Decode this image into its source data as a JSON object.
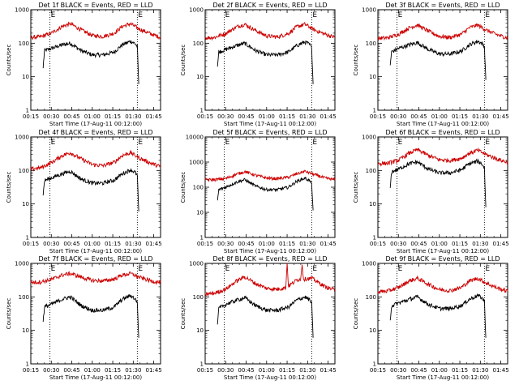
{
  "chart_data": [
    {
      "type": "line",
      "title": "Det 1f BLACK = Events, RED = LLD",
      "xlabel": "Start Time (17-Aug-11 00:12:00)",
      "ylabel": "Counts/sec",
      "ylog": true,
      "ylim": [
        1,
        1000
      ],
      "xlim": [
        "00:15",
        "01:50"
      ],
      "x_ticks": [
        "00:15",
        "00:30",
        "00:45",
        "01:00",
        "01:15",
        "01:30",
        "01:45"
      ],
      "y_ticks": [
        "1",
        "10",
        "100",
        "1000"
      ],
      "event_lines": [
        "00:29",
        "01:33"
      ],
      "event_marks": [
        "E",
        "E"
      ],
      "series": [
        {
          "name": "Events",
          "color": "#000000",
          "x": [
            "00:24",
            "00:25",
            "00:30",
            "00:38",
            "00:44",
            "00:52",
            "01:00",
            "01:08",
            "01:16",
            "01:22",
            "01:28",
            "01:31",
            "01:33",
            "01:34"
          ],
          "values": [
            18,
            60,
            70,
            90,
            100,
            60,
            45,
            45,
            55,
            90,
            115,
            100,
            80,
            6
          ]
        },
        {
          "name": "LLD",
          "color": "#cc0000",
          "x": [
            "00:15",
            "00:22",
            "00:30",
            "00:38",
            "00:44",
            "00:52",
            "01:00",
            "01:08",
            "01:16",
            "01:22",
            "01:28",
            "01:35",
            "01:43",
            "01:50"
          ],
          "values": [
            150,
            155,
            200,
            320,
            380,
            250,
            170,
            160,
            200,
            320,
            380,
            260,
            190,
            150
          ]
        }
      ]
    },
    {
      "type": "line",
      "title": "Det 2f BLACK = Events, RED = LLD",
      "xlabel": "Start Time (17-Aug-11 00:12:00)",
      "ylabel": "Counts/sec",
      "ylog": true,
      "ylim": [
        1,
        1000
      ],
      "xlim": [
        "00:15",
        "01:50"
      ],
      "x_ticks": [
        "00:15",
        "00:30",
        "00:45",
        "01:00",
        "01:15",
        "01:30",
        "01:45"
      ],
      "y_ticks": [
        "1",
        "10",
        "100",
        "1000"
      ],
      "event_lines": [
        "00:29",
        "01:33"
      ],
      "event_marks": [
        "E",
        "E"
      ],
      "series": [
        {
          "name": "Events",
          "color": "#000000",
          "x": [
            "00:24",
            "00:25",
            "00:30",
            "00:38",
            "00:44",
            "00:52",
            "01:00",
            "01:08",
            "01:16",
            "01:22",
            "01:28",
            "01:31",
            "01:33",
            "01:34"
          ],
          "values": [
            20,
            55,
            65,
            85,
            100,
            60,
            45,
            45,
            55,
            85,
            110,
            95,
            75,
            6
          ]
        },
        {
          "name": "LLD",
          "color": "#cc0000",
          "x": [
            "00:15",
            "00:22",
            "00:30",
            "00:38",
            "00:44",
            "00:52",
            "01:00",
            "01:08",
            "01:16",
            "01:22",
            "01:28",
            "01:35",
            "01:43",
            "01:50"
          ],
          "values": [
            145,
            150,
            195,
            310,
            370,
            240,
            165,
            155,
            195,
            310,
            370,
            250,
            185,
            150
          ]
        }
      ]
    },
    {
      "type": "line",
      "title": "Det 3f BLACK = Events, RED = LLD",
      "xlabel": "Start Time (17-Aug-11 00:12:00)",
      "ylabel": "Counts/sec",
      "ylog": true,
      "ylim": [
        1,
        1000
      ],
      "xlim": [
        "00:15",
        "01:50"
      ],
      "x_ticks": [
        "00:15",
        "00:30",
        "00:45",
        "01:00",
        "01:15",
        "01:30",
        "01:45"
      ],
      "y_ticks": [
        "1",
        "10",
        "100",
        "1000"
      ],
      "event_lines": [
        "00:29",
        "01:33"
      ],
      "event_marks": [
        "E",
        "E"
      ],
      "series": [
        {
          "name": "Events",
          "color": "#000000",
          "x": [
            "00:24",
            "00:25",
            "00:30",
            "00:38",
            "00:44",
            "00:52",
            "01:00",
            "01:08",
            "01:16",
            "01:22",
            "01:28",
            "01:31",
            "01:33",
            "01:34"
          ],
          "values": [
            22,
            55,
            70,
            90,
            105,
            65,
            48,
            48,
            58,
            90,
            115,
            100,
            80,
            8
          ]
        },
        {
          "name": "LLD",
          "color": "#cc0000",
          "x": [
            "00:15",
            "00:22",
            "00:30",
            "00:38",
            "00:44",
            "00:52",
            "01:00",
            "01:08",
            "01:16",
            "01:22",
            "01:28",
            "01:35",
            "01:43",
            "01:50"
          ],
          "values": [
            140,
            145,
            185,
            290,
            350,
            230,
            160,
            150,
            185,
            290,
            350,
            240,
            175,
            145
          ]
        }
      ]
    },
    {
      "type": "line",
      "title": "Det 4f BLACK = Events, RED = LLD",
      "xlabel": "Start Time (17-Aug-11 00:12:00)",
      "ylabel": "Counts/sec",
      "ylog": true,
      "ylim": [
        1,
        1000
      ],
      "xlim": [
        "00:15",
        "01:50"
      ],
      "x_ticks": [
        "00:15",
        "00:30",
        "00:45",
        "01:00",
        "01:15",
        "01:30",
        "01:45"
      ],
      "y_ticks": [
        "1",
        "10",
        "100",
        "1000"
      ],
      "event_lines": [
        "00:29",
        "01:33"
      ],
      "event_marks": [
        "E",
        "E"
      ],
      "series": [
        {
          "name": "Events",
          "color": "#000000",
          "x": [
            "00:24",
            "00:25",
            "00:30",
            "00:38",
            "00:44",
            "00:52",
            "01:00",
            "01:08",
            "01:16",
            "01:22",
            "01:28",
            "01:31",
            "01:33",
            "01:34"
          ],
          "values": [
            18,
            50,
            60,
            80,
            95,
            55,
            42,
            42,
            52,
            80,
            105,
            90,
            70,
            6
          ]
        },
        {
          "name": "LLD",
          "color": "#cc0000",
          "x": [
            "00:15",
            "00:22",
            "00:30",
            "00:38",
            "00:44",
            "00:52",
            "01:00",
            "01:08",
            "01:16",
            "01:22",
            "01:28",
            "01:35",
            "01:43",
            "01:50"
          ],
          "values": [
            110,
            120,
            170,
            280,
            340,
            220,
            150,
            140,
            175,
            280,
            340,
            230,
            165,
            130
          ]
        }
      ]
    },
    {
      "type": "line",
      "title": "Det 5f BLACK = Events, RED = LLD",
      "xlabel": "Start Time (17-Aug-11 00:12:00)",
      "ylabel": "Counts/sec",
      "ylog": true,
      "ylim": [
        1,
        10000
      ],
      "xlim": [
        "00:15",
        "01:50"
      ],
      "x_ticks": [
        "00:15",
        "00:30",
        "00:45",
        "01:00",
        "01:15",
        "01:30",
        "01:45"
      ],
      "y_ticks": [
        "1",
        "10",
        "100",
        "1000",
        "10000"
      ],
      "event_lines": [
        "00:29",
        "01:33"
      ],
      "event_marks": [
        "E",
        "E"
      ],
      "series": [
        {
          "name": "Events",
          "color": "#000000",
          "x": [
            "00:24",
            "00:25",
            "00:30",
            "00:38",
            "00:44",
            "00:52",
            "01:00",
            "01:08",
            "01:16",
            "01:22",
            "01:28",
            "01:31",
            "01:33",
            "01:34"
          ],
          "values": [
            30,
            80,
            100,
            160,
            200,
            110,
            80,
            80,
            100,
            170,
            230,
            190,
            140,
            12
          ]
        },
        {
          "name": "LLD",
          "color": "#cc0000",
          "x": [
            "00:15",
            "00:22",
            "00:30",
            "00:38",
            "00:44",
            "00:52",
            "01:00",
            "01:08",
            "01:16",
            "01:22",
            "01:28",
            "01:35",
            "01:43",
            "01:50"
          ],
          "values": [
            200,
            200,
            220,
            330,
            420,
            300,
            230,
            220,
            250,
            340,
            430,
            320,
            230,
            200
          ]
        }
      ]
    },
    {
      "type": "line",
      "title": "Det 6f BLACK = Events, RED = LLD",
      "xlabel": "Start Time (17-Aug-11 00:12:00)",
      "ylabel": "Counts/sec",
      "ylog": true,
      "ylim": [
        1,
        1000
      ],
      "xlim": [
        "00:15",
        "01:50"
      ],
      "x_ticks": [
        "00:15",
        "00:30",
        "00:45",
        "01:00",
        "01:15",
        "01:30",
        "01:45"
      ],
      "y_ticks": [
        "1",
        "10",
        "100",
        "1000"
      ],
      "event_lines": [
        "00:29",
        "01:33"
      ],
      "event_marks": [
        "E",
        "E"
      ],
      "series": [
        {
          "name": "Events",
          "color": "#000000",
          "x": [
            "00:24",
            "00:25",
            "00:30",
            "00:38",
            "00:44",
            "00:52",
            "01:00",
            "01:08",
            "01:16",
            "01:22",
            "01:28",
            "01:31",
            "01:33",
            "01:34"
          ],
          "values": [
            30,
            90,
            110,
            160,
            180,
            110,
            85,
            85,
            105,
            160,
            190,
            160,
            120,
            8
          ]
        },
        {
          "name": "LLD",
          "color": "#cc0000",
          "x": [
            "00:15",
            "00:22",
            "00:30",
            "00:38",
            "00:44",
            "00:52",
            "01:00",
            "01:08",
            "01:16",
            "01:22",
            "01:28",
            "01:35",
            "01:43",
            "01:50"
          ],
          "values": [
            160,
            165,
            200,
            330,
            420,
            280,
            210,
            200,
            230,
            330,
            400,
            290,
            215,
            175
          ]
        }
      ]
    },
    {
      "type": "line",
      "title": "Det 7f BLACK = Events, RED = LLD",
      "xlabel": "Start Time (17-Aug-11 00:12:00)",
      "ylabel": "Counts/sec",
      "ylog": true,
      "ylim": [
        1,
        1000
      ],
      "xlim": [
        "00:15",
        "01:50"
      ],
      "x_ticks": [
        "00:15",
        "00:30",
        "00:45",
        "01:00",
        "01:15",
        "01:30",
        "01:45"
      ],
      "y_ticks": [
        "1",
        "10",
        "100",
        "1000"
      ],
      "event_lines": [
        "00:29",
        "01:33"
      ],
      "event_marks": [
        "E",
        "E"
      ],
      "series": [
        {
          "name": "Events",
          "color": "#000000",
          "x": [
            "00:24",
            "00:25",
            "00:30",
            "00:38",
            "00:44",
            "00:52",
            "01:00",
            "01:08",
            "01:16",
            "01:22",
            "01:28",
            "01:31",
            "01:33",
            "01:34"
          ],
          "values": [
            18,
            50,
            60,
            85,
            100,
            55,
            40,
            40,
            50,
            85,
            110,
            90,
            70,
            6
          ]
        },
        {
          "name": "LLD",
          "color": "#cc0000",
          "x": [
            "00:15",
            "00:22",
            "00:30",
            "00:38",
            "00:44",
            "00:52",
            "01:00",
            "01:08",
            "01:16",
            "01:22",
            "01:28",
            "01:35",
            "01:43",
            "01:50"
          ],
          "values": [
            270,
            280,
            330,
            450,
            500,
            390,
            310,
            300,
            340,
            450,
            500,
            380,
            300,
            270
          ]
        }
      ]
    },
    {
      "type": "line",
      "title": "Det 8f BLACK = Events, RED = LLD",
      "xlabel": "Start Time (17-Aug-11 00:12:00)",
      "ylabel": "Counts/sec",
      "ylog": true,
      "ylim": [
        1,
        1000
      ],
      "xlim": [
        "00:15",
        "01:50"
      ],
      "x_ticks": [
        "00:15",
        "00:30",
        "00:45",
        "01:00",
        "01:15",
        "01:30",
        "01:45"
      ],
      "y_ticks": [
        "1",
        "10",
        "100",
        "1000"
      ],
      "event_lines": [
        "00:29",
        "01:33"
      ],
      "event_marks": [
        "E",
        "E"
      ],
      "series": [
        {
          "name": "Events",
          "color": "#000000",
          "x": [
            "00:24",
            "00:25",
            "00:30",
            "00:38",
            "00:44",
            "00:52",
            "01:00",
            "01:08",
            "01:16",
            "01:22",
            "01:28",
            "01:31",
            "01:33",
            "01:34"
          ],
          "values": [
            15,
            45,
            60,
            80,
            95,
            55,
            40,
            40,
            50,
            80,
            100,
            85,
            65,
            6
          ]
        },
        {
          "name": "LLD",
          "color": "#cc0000",
          "x": [
            "00:15",
            "00:22",
            "00:30",
            "00:38",
            "00:44",
            "00:52",
            "01:00",
            "01:08",
            "01:14",
            "01:15",
            "01:16",
            "01:22",
            "01:25",
            "01:26",
            "01:27",
            "01:33",
            "01:43",
            "01:50"
          ],
          "values": [
            120,
            130,
            170,
            300,
            400,
            250,
            180,
            170,
            190,
            1000,
            210,
            320,
            350,
            1000,
            340,
            360,
            200,
            160
          ]
        }
      ]
    },
    {
      "type": "line",
      "title": "Det 9f BLACK = Events, RED = LLD",
      "xlabel": "Start Time (17-Aug-11 00:12:00)",
      "ylabel": "Counts/sec",
      "ylog": true,
      "ylim": [
        1,
        1000
      ],
      "xlim": [
        "00:15",
        "01:50"
      ],
      "x_ticks": [
        "00:15",
        "00:30",
        "00:45",
        "01:00",
        "01:15",
        "01:30",
        "01:45"
      ],
      "y_ticks": [
        "1",
        "10",
        "100",
        "1000"
      ],
      "event_lines": [
        "00:29",
        "01:33"
      ],
      "event_marks": [
        "E",
        "E"
      ],
      "series": [
        {
          "name": "Events",
          "color": "#000000",
          "x": [
            "00:24",
            "00:25",
            "00:30",
            "00:38",
            "00:44",
            "00:52",
            "01:00",
            "01:08",
            "01:16",
            "01:22",
            "01:28",
            "01:31",
            "01:33",
            "01:34"
          ],
          "values": [
            20,
            55,
            65,
            85,
            100,
            60,
            45,
            45,
            55,
            85,
            110,
            95,
            75,
            6
          ]
        },
        {
          "name": "LLD",
          "color": "#cc0000",
          "x": [
            "00:15",
            "00:22",
            "00:30",
            "00:38",
            "00:44",
            "00:52",
            "01:00",
            "01:08",
            "01:16",
            "01:22",
            "01:28",
            "01:35",
            "01:43",
            "01:50"
          ],
          "values": [
            140,
            150,
            190,
            300,
            360,
            240,
            165,
            155,
            190,
            300,
            360,
            250,
            180,
            150
          ]
        }
      ]
    }
  ]
}
